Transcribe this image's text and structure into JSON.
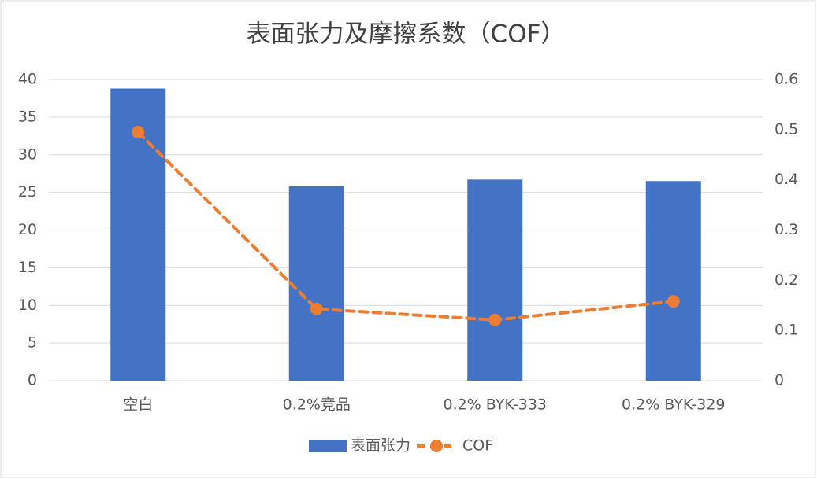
{
  "chart_data": {
    "type": "bar_line",
    "title": "表面张力及摩擦系数（COF）",
    "categories": [
      "空白",
      "0.2%竞品",
      "0.2% BYK-333",
      "0.2% BYK-329"
    ],
    "series": [
      {
        "name": "表面张力",
        "color": "#4472c4",
        "type": "bar",
        "values": [
          38.8,
          25.8,
          26.7,
          26.5
        ]
      },
      {
        "name": "COF",
        "color": "#ed7d31",
        "type": "line",
        "axis": "y2",
        "values": [
          0.495,
          0.143,
          0.121,
          0.158
        ]
      }
    ],
    "ylim": [
      0,
      40
    ],
    "yticks": [
      0,
      5,
      10,
      15,
      20,
      25,
      30,
      35,
      40
    ],
    "y2lim": [
      0,
      0.6
    ],
    "y2ticks": [
      0,
      0.1,
      0.2,
      0.3,
      0.4,
      0.5,
      0.6
    ],
    "grid": true,
    "legend": "bottom"
  }
}
